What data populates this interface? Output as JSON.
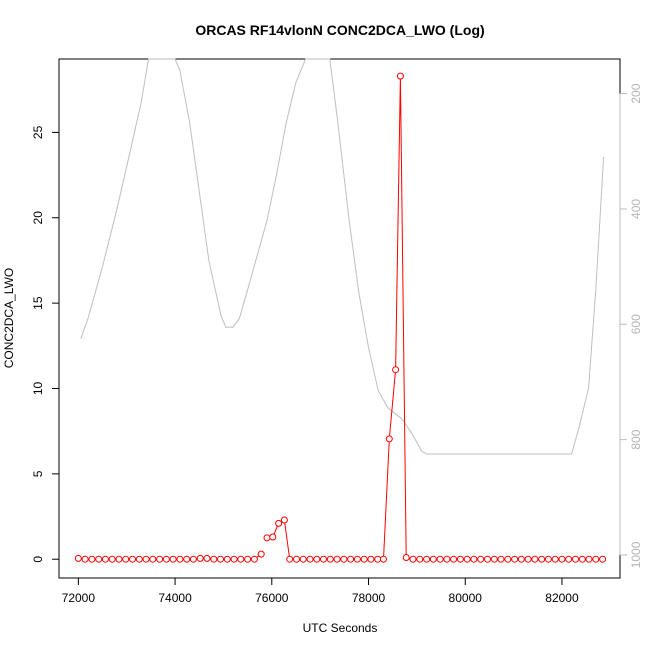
{
  "chart_data": {
    "type": "line",
    "title": "ORCAS RF14vlonN CONC2DCA_LWO (Log)",
    "xlabel": "UTC Seconds",
    "ylabel": "CONC2DCA_LWO",
    "xlim": [
      71600,
      83200
    ],
    "ylim": [
      -1.1,
      29.3
    ],
    "y2lim": [
      1040,
      140
    ],
    "x_ticks": [
      72000,
      74000,
      76000,
      78000,
      80000,
      82000
    ],
    "y_ticks": [
      0,
      5,
      10,
      15,
      20,
      25
    ],
    "y2_ticks": [
      200,
      400,
      600,
      800,
      1000
    ],
    "colors": {
      "series": "#ff0000",
      "secondary": "#bebebe"
    },
    "series": [
      {
        "color": "#ff0000",
        "marker": "open-circle",
        "segments": [
          [
            [
              72000,
              0.05
            ],
            [
              72140,
              0
            ],
            [
              72280,
              0
            ],
            [
              72420,
              0
            ],
            [
              72560,
              0
            ],
            [
              72700,
              0
            ],
            [
              72840,
              0
            ],
            [
              72980,
              0
            ],
            [
              73120,
              0
            ],
            [
              73260,
              0
            ],
            [
              73400,
              0
            ],
            [
              73540,
              0
            ],
            [
              73680,
              0
            ],
            [
              73820,
              0
            ],
            [
              73960,
              0
            ],
            [
              74100,
              0
            ],
            [
              74240,
              0
            ],
            [
              74380,
              0
            ],
            [
              74520,
              0.05
            ],
            [
              74660,
              0.05
            ],
            [
              74800,
              0
            ],
            [
              74940,
              0
            ],
            [
              75080,
              0
            ],
            [
              75220,
              0
            ],
            [
              75360,
              0
            ],
            [
              75500,
              0
            ],
            [
              75640,
              0
            ],
            [
              75780,
              0.3
            ]
          ],
          [
            [
              75900,
              1.25
            ],
            [
              76020,
              1.3
            ],
            [
              76140,
              2.1
            ],
            [
              76260,
              2.3
            ],
            [
              76370,
              0
            ]
          ],
          [
            [
              76370,
              0
            ],
            [
              76510,
              0
            ],
            [
              76650,
              0
            ],
            [
              76790,
              0
            ],
            [
              76930,
              0
            ],
            [
              77070,
              0
            ],
            [
              77210,
              0
            ],
            [
              77350,
              0
            ],
            [
              77490,
              0
            ],
            [
              77630,
              0
            ],
            [
              77770,
              0
            ],
            [
              77910,
              0
            ],
            [
              78050,
              0
            ],
            [
              78190,
              0
            ],
            [
              78310,
              0
            ],
            [
              78430,
              7.05
            ],
            [
              78560,
              11.1
            ],
            [
              78660,
              28.3
            ],
            [
              78780,
              0.1
            ],
            [
              78920,
              0
            ],
            [
              79060,
              0
            ],
            [
              79200,
              0
            ],
            [
              79340,
              0
            ],
            [
              79480,
              0
            ],
            [
              79620,
              0
            ],
            [
              79760,
              0
            ],
            [
              79900,
              0
            ],
            [
              80040,
              0
            ],
            [
              80180,
              0
            ],
            [
              80320,
              0
            ],
            [
              80460,
              0
            ],
            [
              80600,
              0
            ],
            [
              80740,
              0
            ],
            [
              80880,
              0
            ],
            [
              81020,
              0
            ],
            [
              81160,
              0
            ],
            [
              81300,
              0
            ],
            [
              81440,
              0
            ],
            [
              81580,
              0
            ],
            [
              81720,
              0
            ],
            [
              81860,
              0
            ],
            [
              82000,
              0
            ],
            [
              82140,
              0
            ],
            [
              82280,
              0
            ],
            [
              82420,
              0
            ],
            [
              82560,
              0
            ],
            [
              82700,
              0
            ],
            [
              82840,
              0
            ]
          ]
        ]
      },
      {
        "color": "#bebebe",
        "axis": "right",
        "marker": "none",
        "points": [
          [
            72050,
            625
          ],
          [
            72200,
            590
          ],
          [
            72500,
            500
          ],
          [
            72800,
            400
          ],
          [
            73100,
            290
          ],
          [
            73300,
            215
          ],
          [
            73450,
            140
          ],
          [
            74000,
            140
          ],
          [
            74100,
            160
          ],
          [
            74300,
            250
          ],
          [
            74500,
            370
          ],
          [
            74700,
            490
          ],
          [
            74950,
            585
          ],
          [
            75050,
            605
          ],
          [
            75200,
            605
          ],
          [
            75330,
            590
          ],
          [
            75500,
            540
          ],
          [
            75700,
            480
          ],
          [
            75900,
            420
          ],
          [
            76100,
            340
          ],
          [
            76300,
            250
          ],
          [
            76500,
            180
          ],
          [
            76700,
            140
          ],
          [
            77200,
            140
          ],
          [
            77350,
            240
          ],
          [
            77600,
            420
          ],
          [
            77800,
            545
          ],
          [
            78000,
            640
          ],
          [
            78200,
            715
          ],
          [
            78400,
            745
          ],
          [
            78700,
            765
          ],
          [
            78900,
            790
          ],
          [
            79100,
            820
          ],
          [
            79200,
            825
          ],
          [
            80000,
            825
          ],
          [
            81000,
            825
          ],
          [
            82000,
            825
          ],
          [
            82200,
            825
          ],
          [
            82350,
            780
          ],
          [
            82550,
            710
          ],
          [
            82700,
            540
          ],
          [
            82860,
            310
          ]
        ]
      }
    ]
  }
}
